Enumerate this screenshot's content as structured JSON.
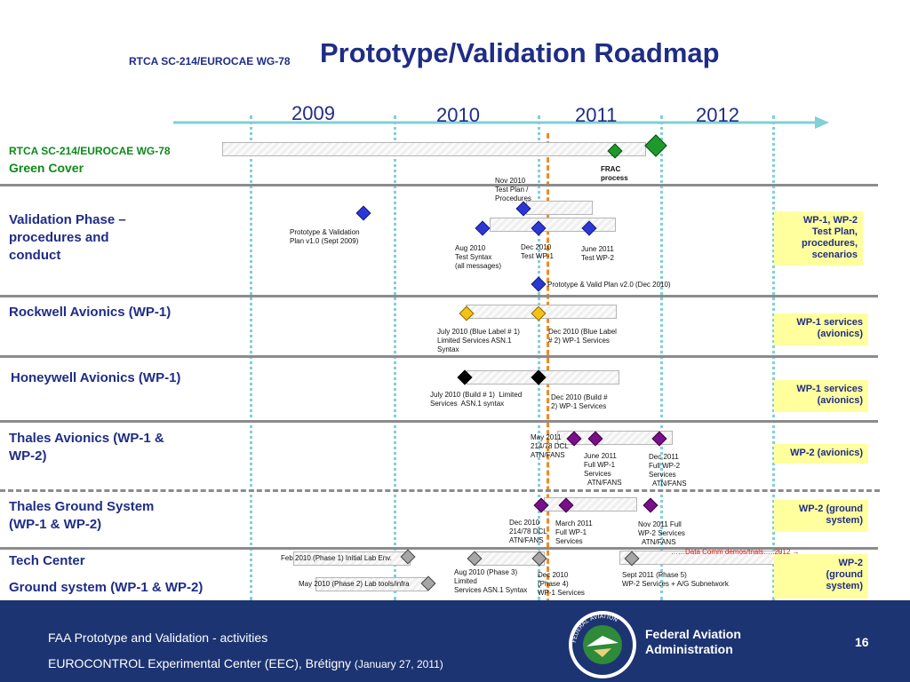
{
  "header": {
    "subtitle": "RTCA SC-214/EUROCAE WG-78",
    "title": "Prototype/Validation Roadmap"
  },
  "timeline": {
    "years": [
      "2009",
      "2010",
      "2011",
      "2012"
    ],
    "colors": {
      "years_line": "#7fd0d8",
      "today_marker": "#f08a24",
      "title_blue": "#1f2d86"
    }
  },
  "rows": {
    "green_cover": {
      "label_line1": "RTCA SC-214/EUROCAE WG-78",
      "label_line2": "Green Cover",
      "frac": "FRAC\nprocess"
    },
    "validation": {
      "label": "Validation Phase –\nprocedures and\nconduct",
      "nov2010": "Nov 2010\nTest Plan /\nProcedures",
      "proto_v1": "Prototype & Validation\nPlan v1.0 (Sept 2009)",
      "aug2010": "Aug 2010\nTest Syntax\n(all messages)",
      "dec2010": "Dec 2010\nTest WP-1",
      "june2011": "June 2011\nTest WP-2",
      "proto_v2": "Prototype & Valid Plan v2.0 (Dec 2010)",
      "box": "WP-1, WP-2\nTest Plan,\nprocedures,\nscenarios"
    },
    "rockwell": {
      "label": "Rockwell Avionics (WP-1)",
      "july2010": "July 2010 (Blue Label # 1)\nLimited Services ASN.1\nSyntax",
      "dec2010": "Dec 2010 (Blue Label\n# 2) WP-1 Services",
      "box": "WP-1 services\n(avionics)"
    },
    "honeywell": {
      "label": "Honeywell Avionics (WP-1)",
      "july2010": "July 2010 (Build # 1)  Limited\nServices  ASN.1 syntax",
      "dec2010": "Dec 2010 (Build #\n2) WP-1 Services",
      "box": "WP-1 services\n(avionics)"
    },
    "thales_avionics": {
      "label": "Thales Avionics (WP-1 &\nWP-2)",
      "may2011": "May 2011\n214/78 DCL\nATN/FANS",
      "june2011": "June 2011\nFull WP-1\nServices\n  ATN/FANS",
      "dec2011": "Dec 2011\nFull WP-2\nServices\n  ATN/FANS",
      "box": "WP-2 (avionics)"
    },
    "thales_ground": {
      "label": "Thales Ground System\n(WP-1 & WP-2)",
      "dec2010": "Dec 2010\n214/78 DCL\nATN/FANS",
      "march2011": "March 2011\nFull WP-1\nServices",
      "nov2011": "Nov 2011 Full\nWP-2 Services\n  ATN/FANS",
      "box": "WP-2 (ground\nsystem)"
    },
    "tech_center": {
      "label1": "Tech Center",
      "label2": "Ground system (WP-1 & WP-2)",
      "feb2010": "Feb 2010 (Phase 1) Initial Lab Env.",
      "may2010": "May 2010 (Phase 2) Lab tools/infra",
      "aug2010": "Aug 2010 (Phase 3)\nLimited\nServices ASN.1 Syntax",
      "dec2010": "Dec 2010\n(Phase 4)\nWP-1 Services",
      "sept2011": "Sept 2011 (Phase 5)\nWP-2 Services + A/G Subnetwork",
      "datacomm": "……Data Comm demos/trials…..2012 →",
      "box": "WP-2\n(ground\nsystem)"
    }
  },
  "footer": {
    "line1": "FAA Prototype and Validation - activities",
    "line2": "EUROCONTROL Experimental Center (EEC), Brétigny",
    "line2_date": "(January 27, 2011)",
    "agency": "Federal Aviation\nAdministration",
    "page": "16",
    "seal_text": "FEDERAL AVIATION ADMINISTRATION"
  }
}
